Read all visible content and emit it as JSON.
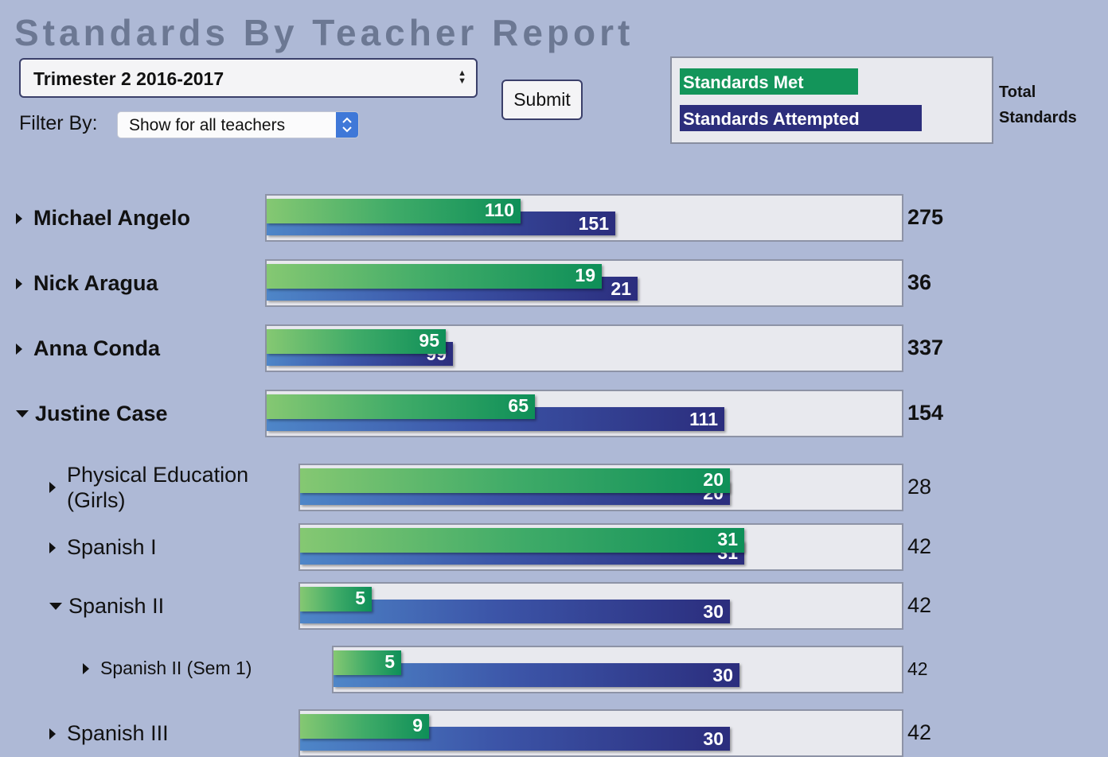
{
  "page": {
    "title": "Standards By Teacher Report"
  },
  "controls": {
    "term_value": "Trimester 2 2016-2017",
    "filter_label": "Filter By:",
    "filter_value": "Show for all teachers",
    "submit_label": "Submit"
  },
  "legend": {
    "met_label": "Standards Met",
    "attempted_label": "Standards Attempted",
    "total_line1": "Total",
    "total_line2": "Standards"
  },
  "colors": {
    "met": "#13955a",
    "attempted": "#2c2e7c",
    "background": "#aeb9d6"
  },
  "chart_data": {
    "type": "bar",
    "series": [
      {
        "name": "Standards Met"
      },
      {
        "name": "Standards Attempted"
      }
    ],
    "rows": [
      {
        "label": "Michael Angelo",
        "level": 0,
        "expanded": false,
        "met": 110,
        "attempted": 151,
        "total": 275
      },
      {
        "label": "Nick Aragua",
        "level": 0,
        "expanded": false,
        "met": 19,
        "attempted": 21,
        "total": 36
      },
      {
        "label": "Anna Conda",
        "level": 0,
        "expanded": false,
        "met": 95,
        "attempted": 99,
        "total": 337
      },
      {
        "label": "Justine Case",
        "level": 0,
        "expanded": true,
        "met": 65,
        "attempted": 111,
        "total": 154
      },
      {
        "label": "Physical Education (Girls)",
        "level": 1,
        "expanded": false,
        "met": 20,
        "attempted": 20,
        "total": 28
      },
      {
        "label": "Spanish I",
        "level": 1,
        "expanded": false,
        "met": 31,
        "attempted": 31,
        "total": 42
      },
      {
        "label": "Spanish II",
        "level": 1,
        "expanded": true,
        "met": 5,
        "attempted": 30,
        "total": 42
      },
      {
        "label": "Spanish II (Sem 1)",
        "level": 2,
        "expanded": false,
        "met": 5,
        "attempted": 30,
        "total": 42
      },
      {
        "label": "Spanish III",
        "level": 1,
        "expanded": false,
        "met": 9,
        "attempted": 30,
        "total": 42
      }
    ]
  }
}
